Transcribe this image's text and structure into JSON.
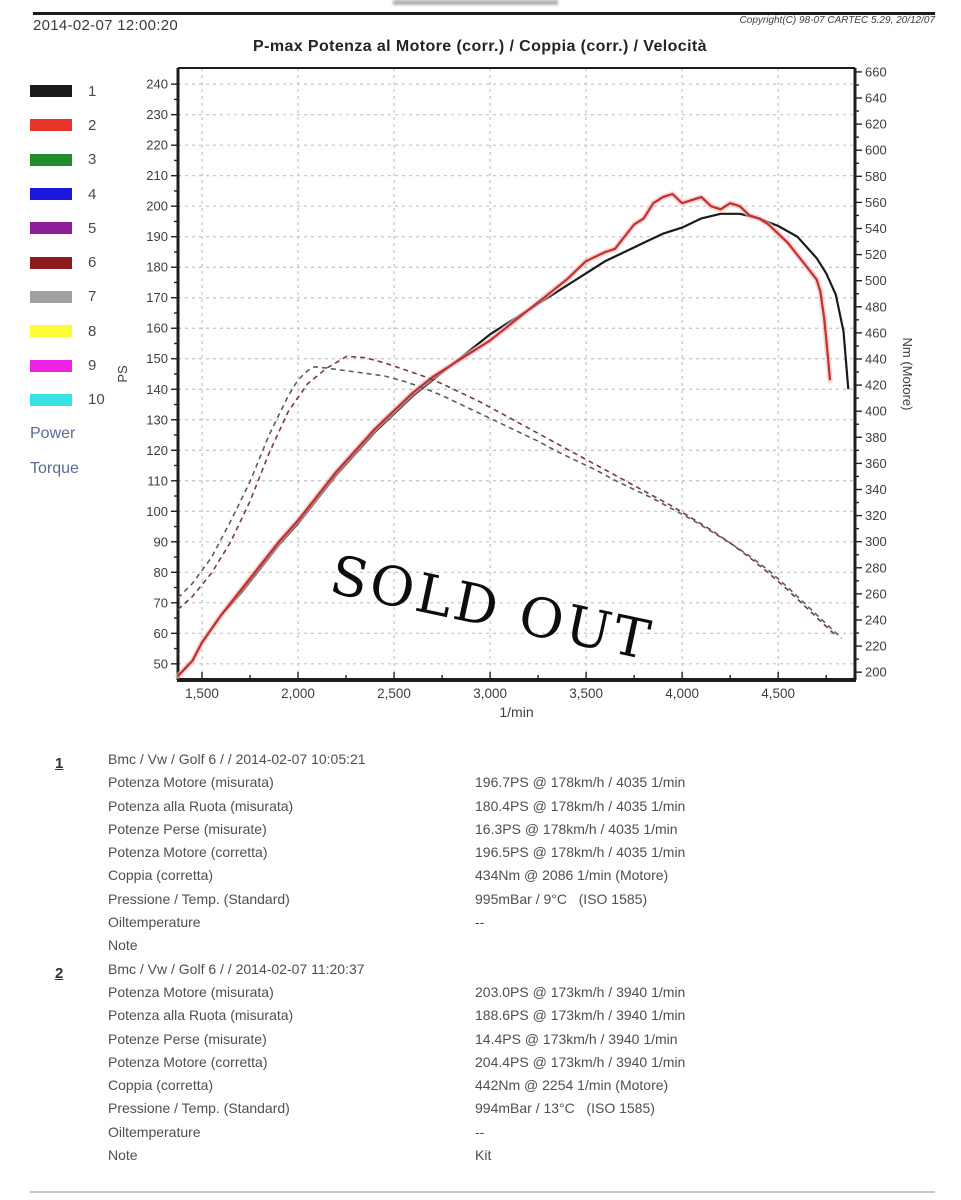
{
  "header": {
    "timestamp": "2014-02-07 12:00:20",
    "copyright": "Copyright(C) 98-07 CARTEC 5.29, 20/12/07",
    "title": "P-max Potenza al Motore (corr.) / Coppia (corr.) / Velocità"
  },
  "legend": {
    "entries": [
      {
        "num": "1",
        "color": "#1a1a1a"
      },
      {
        "num": "2",
        "color": "#e8342a"
      },
      {
        "num": "3",
        "color": "#228b2e"
      },
      {
        "num": "4",
        "color": "#1a18dd"
      },
      {
        "num": "5",
        "color": "#8e1b99"
      },
      {
        "num": "6",
        "color": "#8e1b1b"
      },
      {
        "num": "7",
        "color": "#a0a0a0"
      },
      {
        "num": "8",
        "color": "#fbfb36"
      },
      {
        "num": "9",
        "color": "#ee22e2"
      },
      {
        "num": "10",
        "color": "#37e3e3"
      }
    ],
    "power_label": "Power",
    "torque_label": "Torque",
    "label_color": "#5c6b96"
  },
  "watermark": "SOLD OUT",
  "chart_data": {
    "type": "line",
    "title": "P-max Potenza al Motore (corr.) / Coppia (corr.) / Velocità",
    "xlabel": "1/min",
    "ylabel_left": "PS",
    "ylabel_right": "Nm (Motore)",
    "grid": true,
    "x_range": [
      1375,
      4900
    ],
    "x_major_ticks": [
      {
        "v": 1500,
        "label": "1,500"
      },
      {
        "v": 2000,
        "label": "2,000"
      },
      {
        "v": 2500,
        "label": "2,500"
      },
      {
        "v": 3000,
        "label": "3,000"
      },
      {
        "v": 3500,
        "label": "3,500"
      },
      {
        "v": 4000,
        "label": "4,000"
      },
      {
        "v": 4500,
        "label": "4,500"
      }
    ],
    "x_minor_step": 250,
    "y_left_range": [
      44.7,
      245.3
    ],
    "y_left_ticks": {
      "min": 50,
      "max": 240,
      "major": 10,
      "minor": 5
    },
    "y_right_range": [
      194,
      663
    ],
    "y_right_ticks": {
      "min": 200,
      "max": 660,
      "major": 20,
      "minor": 10
    },
    "series": [
      {
        "name": "power-run-1",
        "axis": "left",
        "style": "solid",
        "color": "#1a1a1a",
        "points": [
          [
            1375,
            46
          ],
          [
            1450,
            51
          ],
          [
            1500,
            57
          ],
          [
            1600,
            66
          ],
          [
            1700,
            73
          ],
          [
            1800,
            81
          ],
          [
            1900,
            89
          ],
          [
            2000,
            96
          ],
          [
            2100,
            104
          ],
          [
            2200,
            112
          ],
          [
            2300,
            119
          ],
          [
            2400,
            126
          ],
          [
            2500,
            132
          ],
          [
            2600,
            138
          ],
          [
            2700,
            143
          ],
          [
            2800,
            148
          ],
          [
            2900,
            153
          ],
          [
            3000,
            158
          ],
          [
            3100,
            162
          ],
          [
            3200,
            166
          ],
          [
            3300,
            170
          ],
          [
            3400,
            174
          ],
          [
            3500,
            178
          ],
          [
            3600,
            182
          ],
          [
            3700,
            185
          ],
          [
            3800,
            188
          ],
          [
            3900,
            191
          ],
          [
            4000,
            193
          ],
          [
            4100,
            196
          ],
          [
            4200,
            197.5
          ],
          [
            4300,
            197.5
          ],
          [
            4400,
            196
          ],
          [
            4500,
            193.5
          ],
          [
            4600,
            190
          ],
          [
            4700,
            183
          ],
          [
            4750,
            178
          ],
          [
            4800,
            171
          ],
          [
            4840,
            159
          ],
          [
            4865,
            140
          ]
        ]
      },
      {
        "name": "power-run-2",
        "axis": "left",
        "style": "solid",
        "color": "#c43030",
        "halo": "#f3bcbc",
        "points": [
          [
            1375,
            46
          ],
          [
            1450,
            51
          ],
          [
            1500,
            57
          ],
          [
            1600,
            66
          ],
          [
            1700,
            74
          ],
          [
            1800,
            82
          ],
          [
            1900,
            90
          ],
          [
            2000,
            97
          ],
          [
            2100,
            105
          ],
          [
            2200,
            113
          ],
          [
            2300,
            120
          ],
          [
            2400,
            127
          ],
          [
            2500,
            133
          ],
          [
            2600,
            139
          ],
          [
            2700,
            144
          ],
          [
            2750,
            146
          ],
          [
            2800,
            148
          ],
          [
            2900,
            152
          ],
          [
            3000,
            156
          ],
          [
            3100,
            161
          ],
          [
            3200,
            166
          ],
          [
            3300,
            171
          ],
          [
            3400,
            176
          ],
          [
            3500,
            182
          ],
          [
            3600,
            185
          ],
          [
            3650,
            186
          ],
          [
            3700,
            190
          ],
          [
            3750,
            194
          ],
          [
            3800,
            196
          ],
          [
            3850,
            201
          ],
          [
            3900,
            203
          ],
          [
            3950,
            204
          ],
          [
            4000,
            201
          ],
          [
            4050,
            202
          ],
          [
            4100,
            203
          ],
          [
            4150,
            200
          ],
          [
            4200,
            199
          ],
          [
            4250,
            201
          ],
          [
            4300,
            200
          ],
          [
            4350,
            197
          ],
          [
            4400,
            196
          ],
          [
            4450,
            194
          ],
          [
            4500,
            191
          ],
          [
            4550,
            188
          ],
          [
            4600,
            184
          ],
          [
            4650,
            180
          ],
          [
            4700,
            176
          ],
          [
            4720,
            172
          ],
          [
            4740,
            163
          ],
          [
            4760,
            150
          ],
          [
            4770,
            143
          ]
        ]
      },
      {
        "name": "torque-run-1",
        "axis": "right",
        "style": "dashed",
        "color": "#5d5d5d",
        "points": [
          [
            1375,
            257
          ],
          [
            1450,
            268
          ],
          [
            1550,
            288
          ],
          [
            1650,
            316
          ],
          [
            1750,
            346
          ],
          [
            1850,
            382
          ],
          [
            1950,
            412
          ],
          [
            2000,
            424
          ],
          [
            2050,
            431
          ],
          [
            2086,
            434
          ],
          [
            2150,
            433
          ],
          [
            2250,
            431
          ],
          [
            2350,
            429
          ],
          [
            2450,
            427
          ],
          [
            2550,
            423
          ],
          [
            2650,
            418
          ],
          [
            2750,
            412
          ],
          [
            2850,
            405
          ],
          [
            2950,
            398
          ],
          [
            3050,
            391
          ],
          [
            3150,
            384
          ],
          [
            3250,
            377
          ],
          [
            3350,
            369
          ],
          [
            3450,
            362
          ],
          [
            3550,
            355
          ],
          [
            3650,
            347
          ],
          [
            3750,
            340
          ],
          [
            3850,
            333
          ],
          [
            3950,
            325
          ],
          [
            4050,
            317
          ],
          [
            4150,
            308
          ],
          [
            4250,
            299
          ],
          [
            4350,
            289
          ],
          [
            4450,
            278
          ],
          [
            4550,
            265
          ],
          [
            4650,
            251
          ],
          [
            4750,
            237
          ],
          [
            4830,
            226
          ]
        ]
      },
      {
        "name": "torque-run-2",
        "axis": "right",
        "style": "dashed",
        "color": "#7c3a3a",
        "points": [
          [
            1375,
            248
          ],
          [
            1450,
            258
          ],
          [
            1550,
            276
          ],
          [
            1650,
            300
          ],
          [
            1750,
            331
          ],
          [
            1850,
            368
          ],
          [
            1950,
            400
          ],
          [
            2050,
            421
          ],
          [
            2150,
            433
          ],
          [
            2254,
            442
          ],
          [
            2350,
            441
          ],
          [
            2450,
            437
          ],
          [
            2550,
            432
          ],
          [
            2650,
            427
          ],
          [
            2750,
            421
          ],
          [
            2850,
            414
          ],
          [
            2950,
            407
          ],
          [
            3050,
            399
          ],
          [
            3150,
            391
          ],
          [
            3250,
            383
          ],
          [
            3350,
            375
          ],
          [
            3450,
            367
          ],
          [
            3550,
            359
          ],
          [
            3650,
            351
          ],
          [
            3750,
            343
          ],
          [
            3850,
            335
          ],
          [
            3950,
            327
          ],
          [
            4050,
            318
          ],
          [
            4150,
            309
          ],
          [
            4250,
            299
          ],
          [
            4350,
            288
          ],
          [
            4450,
            276
          ],
          [
            4550,
            263
          ],
          [
            4650,
            249
          ],
          [
            4750,
            235
          ],
          [
            4800,
            228
          ]
        ]
      }
    ]
  },
  "results": {
    "runs": [
      {
        "id": "1",
        "header": "Bmc / Vw / Golf 6 /  / 2014-02-07 10:05:21",
        "rows": [
          {
            "label": "Potenza Motore (misurata)",
            "value": "196.7PS @ 178km/h / 4035 1/min"
          },
          {
            "label": "Potenza alla Ruota (misurata)",
            "value": "180.4PS @ 178km/h / 4035 1/min"
          },
          {
            "label": "Potenze Perse (misurate)",
            "value": "16.3PS @ 178km/h / 4035 1/min"
          },
          {
            "label": "Potenza Motore (corretta)",
            "value": "196.5PS @ 178km/h / 4035 1/min"
          },
          {
            "label": "Coppia (corretta)",
            "value": "434Nm @ 2086 1/min (Motore)"
          },
          {
            "label": "Pressione / Temp. (Standard)",
            "value": "995mBar / 9°C   (ISO 1585)"
          },
          {
            "label": "Oiltemperature",
            "value": "--"
          },
          {
            "label": "Note",
            "value": ""
          }
        ]
      },
      {
        "id": "2",
        "header": "Bmc / Vw / Golf 6 /  / 2014-02-07 11:20:37",
        "rows": [
          {
            "label": "Potenza Motore (misurata)",
            "value": "203.0PS @ 173km/h / 3940 1/min"
          },
          {
            "label": "Potenza alla Ruota (misurata)",
            "value": "188.6PS @ 173km/h / 3940 1/min"
          },
          {
            "label": "Potenze Perse (misurate)",
            "value": "14.4PS @ 173km/h / 3940 1/min"
          },
          {
            "label": "Potenza Motore (corretta)",
            "value": "204.4PS @ 173km/h / 3940 1/min"
          },
          {
            "label": "Coppia (corretta)",
            "value": "442Nm @ 2254 1/min (Motore)"
          },
          {
            "label": "Pressione / Temp. (Standard)",
            "value": "994mBar / 13°C   (ISO 1585)"
          },
          {
            "label": "Oiltemperature",
            "value": "--"
          },
          {
            "label": "Note",
            "value": "Kit"
          }
        ]
      }
    ]
  }
}
